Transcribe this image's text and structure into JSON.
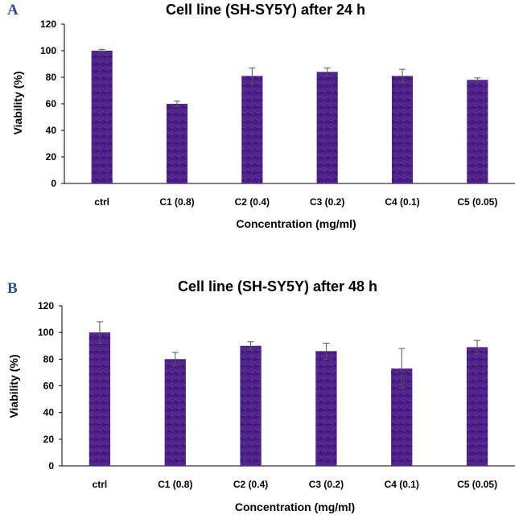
{
  "chart_data": [
    {
      "panel_label": "A",
      "type": "bar",
      "title": "Cell line (SH-SY5Y) after 24 h",
      "xlabel": "Concentration (mg/ml)",
      "ylabel": "Viability (%)",
      "categories": [
        "ctrl",
        "C1 (0.8)",
        "C2 (0.4)",
        "C3 (0.2)",
        "C4 (0.1)",
        "C5 (0.05)"
      ],
      "values": [
        100,
        60,
        81,
        84,
        81,
        78
      ],
      "errors": [
        1,
        2,
        6,
        3,
        5,
        1.5
      ],
      "ylim": [
        0,
        120
      ],
      "yticks": [
        0,
        20,
        40,
        60,
        80,
        100,
        120
      ],
      "grid": false,
      "bar_color": "#4b1f85"
    },
    {
      "panel_label": "B",
      "type": "bar",
      "title": "Cell line (SH-SY5Y) after 48 h",
      "xlabel": "Concentration (mg/ml)",
      "ylabel": "Viability (%)",
      "categories": [
        "ctrl",
        "C1 (0.8)",
        "C2 (0.4)",
        "C3 (0.2)",
        "C4 (0.1)",
        "C5 (0.05)"
      ],
      "values": [
        100,
        80,
        90,
        86,
        73,
        89
      ],
      "errors": [
        8,
        5,
        3,
        6,
        15,
        5
      ],
      "ylim": [
        0,
        120
      ],
      "yticks": [
        0,
        20,
        40,
        60,
        80,
        100,
        120
      ],
      "grid": false,
      "bar_color": "#4b1f85"
    }
  ]
}
